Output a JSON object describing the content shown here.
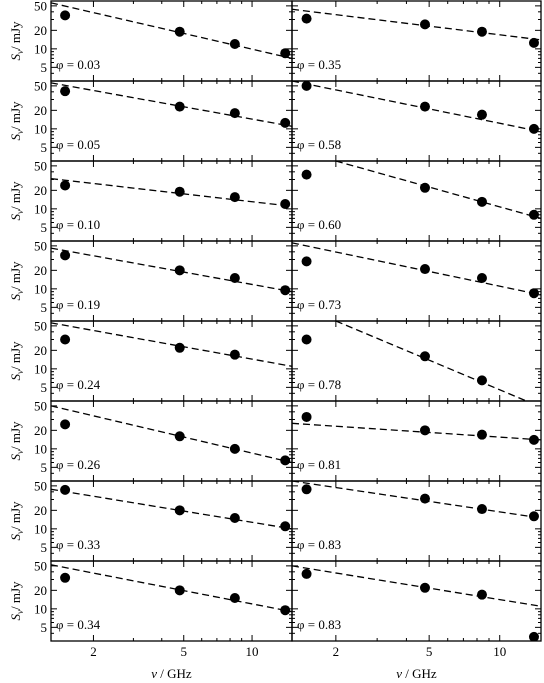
{
  "chart_data": {
    "type": "scatter",
    "grid": false,
    "x_scale": "log",
    "y_scale": "log",
    "xlabel": "ν / GHz",
    "ylabel": "S_ν / mJy",
    "xlim": [
      1.3,
      15
    ],
    "ylim": [
      3,
      60
    ],
    "x_ticks": [
      2,
      5,
      10
    ],
    "y_ticks": [
      5,
      10,
      20,
      50
    ],
    "columns": 2,
    "panels": [
      {
        "phase_label": "φ = 0.03",
        "x": [
          1.5,
          4.8,
          8.4,
          14.0
        ],
        "y": [
          35,
          19,
          12,
          8.5
        ],
        "fit": [
          [
            1.3,
            56
          ],
          [
            15,
            7
          ]
        ]
      },
      {
        "phase_label": "φ = 0.35",
        "x": [
          1.5,
          4.8,
          8.4,
          14.0
        ],
        "y": [
          31,
          25,
          19,
          12.5
        ],
        "fit": [
          [
            1.3,
            44
          ],
          [
            15,
            14
          ]
        ]
      },
      {
        "phase_label": "φ = 0.05",
        "x": [
          1.5,
          4.8,
          8.4,
          14.0
        ],
        "y": [
          41,
          23,
          18,
          12.5
        ],
        "fit": [
          [
            1.3,
            56
          ],
          [
            15,
            11
          ]
        ]
      },
      {
        "phase_label": "φ = 0.58",
        "x": [
          1.5,
          4.8,
          8.4,
          14.0
        ],
        "y": [
          50,
          23,
          17,
          10
        ],
        "fit": [
          [
            1.3,
            60
          ],
          [
            15,
            9
          ]
        ]
      },
      {
        "phase_label": "φ = 0.10",
        "x": [
          1.5,
          4.8,
          8.4,
          14.0
        ],
        "y": [
          24,
          19,
          15.5,
          12
        ],
        "fit": [
          [
            1.3,
            31
          ],
          [
            15,
            11
          ]
        ]
      },
      {
        "phase_label": "φ = 0.60",
        "x": [
          1.5,
          4.8,
          8.4,
          14.0
        ],
        "y": [
          36,
          22,
          13,
          8
        ],
        "fit": [
          [
            2.0,
            60
          ],
          [
            15,
            7
          ]
        ]
      },
      {
        "phase_label": "φ = 0.19",
        "x": [
          1.5,
          4.8,
          8.4,
          14.0
        ],
        "y": [
          35,
          20,
          15,
          9.5
        ],
        "fit": [
          [
            1.3,
            46
          ],
          [
            15,
            9
          ]
        ]
      },
      {
        "phase_label": "φ = 0.73",
        "x": [
          1.5,
          4.8,
          8.4,
          14.0
        ],
        "y": [
          28,
          21,
          15,
          8.5
        ],
        "fit": [
          [
            1.3,
            56
          ],
          [
            15,
            8
          ]
        ]
      },
      {
        "phase_label": "φ = 0.24",
        "x": [
          1.5,
          4.8,
          8.4,
          14.0
        ],
        "y": [
          30,
          22,
          17,
          null
        ],
        "fit": [
          [
            1.3,
            56
          ],
          [
            15,
            11
          ]
        ]
      },
      {
        "phase_label": "φ = 0.78",
        "x": [
          1.5,
          4.8,
          8.4,
          14.0
        ],
        "y": [
          30,
          16,
          6.5,
          null
        ],
        "fit": [
          [
            2.0,
            60
          ],
          [
            13,
            3
          ]
        ]
      },
      {
        "phase_label": "φ = 0.26",
        "x": [
          1.5,
          4.8,
          8.4,
          14.0
        ],
        "y": [
          25,
          16,
          10,
          6.5
        ],
        "fit": [
          [
            1.3,
            50
          ],
          [
            15,
            6
          ]
        ]
      },
      {
        "phase_label": "φ = 0.81",
        "x": [
          1.5,
          4.8,
          8.4,
          14.0
        ],
        "y": [
          33,
          20,
          17,
          14
        ],
        "fit": [
          [
            1.3,
            26
          ],
          [
            15,
            14
          ]
        ]
      },
      {
        "phase_label": "φ = 0.33",
        "x": [
          1.5,
          4.8,
          8.4,
          14.0
        ],
        "y": [
          43,
          20,
          15,
          11
        ],
        "fit": [
          [
            1.3,
            44
          ],
          [
            15,
            10
          ]
        ]
      },
      {
        "phase_label": "φ = 0.83",
        "x": [
          1.5,
          4.8,
          8.4,
          14.0
        ],
        "y": [
          44,
          31,
          21,
          16
        ],
        "fit": [
          [
            1.3,
            60
          ],
          [
            15,
            15
          ]
        ]
      },
      {
        "phase_label": "φ = 0.34",
        "x": [
          1.5,
          4.8,
          8.4,
          14.0
        ],
        "y": [
          32,
          20,
          15,
          9.5
        ],
        "fit": [
          [
            1.3,
            52
          ],
          [
            15,
            9
          ]
        ]
      },
      {
        "phase_label": "φ = 0.83",
        "x": [
          1.5,
          4.8,
          8.4,
          14.0
        ],
        "y": [
          37,
          22,
          17,
          3.5
        ],
        "fit": [
          [
            1.3,
            50
          ],
          [
            15,
            11
          ]
        ]
      }
    ]
  }
}
